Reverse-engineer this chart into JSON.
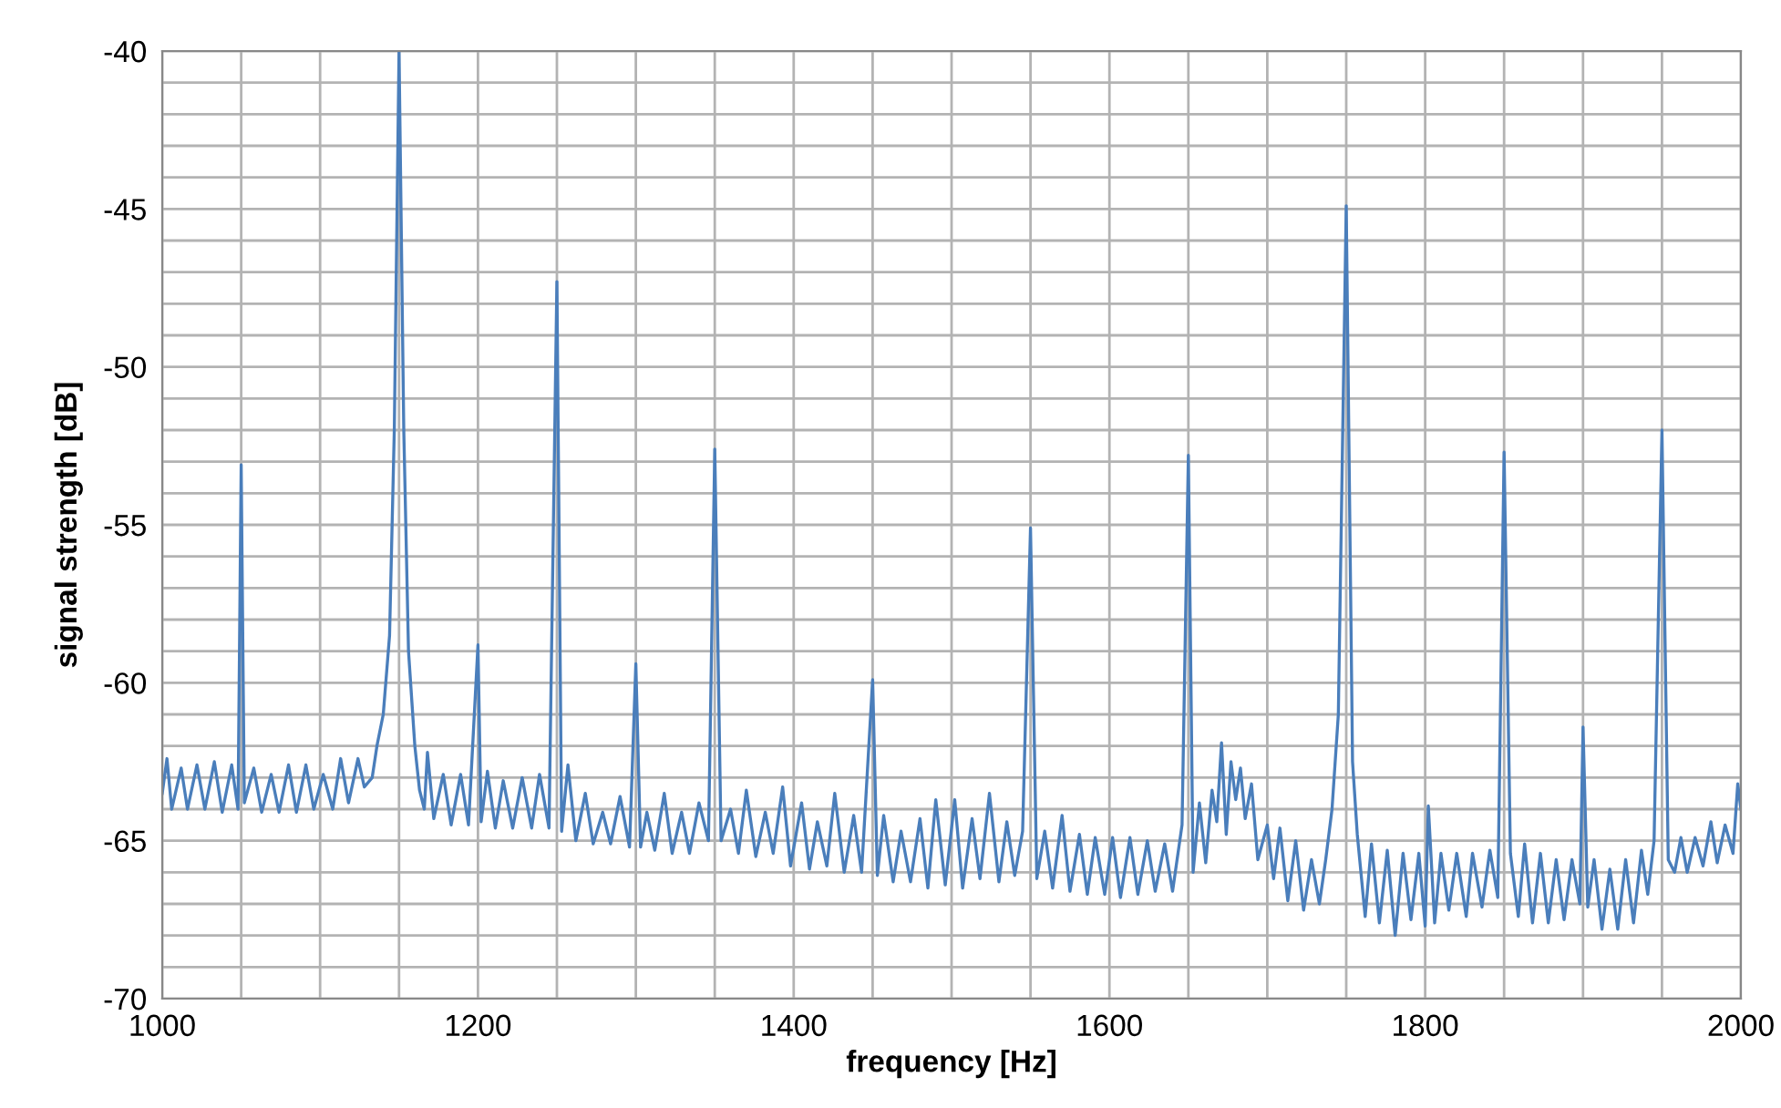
{
  "chart_data": {
    "type": "line",
    "xlabel": "frequency [Hz]",
    "ylabel": "signal strength [dB]",
    "xlim": [
      1000,
      2000
    ],
    "ylim": [
      -70,
      -40
    ],
    "xticks": [
      1000,
      {
        "value": 1050,
        "label": null
      },
      {
        "value": 1100,
        "label": null
      },
      {
        "value": 1150,
        "label": null
      },
      1200,
      {
        "value": 1250,
        "label": null
      },
      {
        "value": 1300,
        "label": null
      },
      {
        "value": 1350,
        "label": null
      },
      1400,
      {
        "value": 1450,
        "label": null
      },
      {
        "value": 1500,
        "label": null
      },
      {
        "value": 1550,
        "label": null
      },
      1600,
      {
        "value": 1650,
        "label": null
      },
      {
        "value": 1700,
        "label": null
      },
      {
        "value": 1750,
        "label": null
      },
      1800,
      {
        "value": 1850,
        "label": null
      },
      {
        "value": 1900,
        "label": null
      },
      {
        "value": 1950,
        "label": null
      },
      2000
    ],
    "yticks": [
      -70,
      {
        "value": -69,
        "label": null
      },
      {
        "value": -68,
        "label": null
      },
      {
        "value": -67,
        "label": null
      },
      {
        "value": -66,
        "label": null
      },
      -65,
      {
        "value": -64,
        "label": null
      },
      {
        "value": -63,
        "label": null
      },
      {
        "value": -62,
        "label": null
      },
      {
        "value": -61,
        "label": null
      },
      -60,
      {
        "value": -59,
        "label": null
      },
      {
        "value": -58,
        "label": null
      },
      {
        "value": -57,
        "label": null
      },
      {
        "value": -56,
        "label": null
      },
      -55,
      {
        "value": -54,
        "label": null
      },
      {
        "value": -53,
        "label": null
      },
      {
        "value": -52,
        "label": null
      },
      {
        "value": -51,
        "label": null
      },
      -50,
      {
        "value": -49,
        "label": null
      },
      {
        "value": -48,
        "label": null
      },
      {
        "value": -47,
        "label": null
      },
      {
        "value": -46,
        "label": null
      },
      -45,
      {
        "value": -44,
        "label": null
      },
      {
        "value": -43,
        "label": null
      },
      {
        "value": -42,
        "label": null
      },
      {
        "value": -41,
        "label": null
      },
      -40
    ],
    "grid": true,
    "legend": false,
    "marker": "none",
    "line_style": "solid",
    "series": [
      {
        "color": "#4a7ebb",
        "x": [
          1000,
          1003,
          1006,
          1012,
          1016,
          1022,
          1027,
          1033,
          1038,
          1044,
          1048,
          1050,
          1052,
          1058,
          1063,
          1069,
          1074,
          1080,
          1085,
          1091,
          1096,
          1102,
          1108,
          1113,
          1118,
          1124,
          1128,
          1133,
          1136,
          1140,
          1144,
          1147,
          1150,
          1153,
          1156,
          1160,
          1163,
          1166,
          1168,
          1172,
          1178,
          1183,
          1189,
          1194,
          1200,
          1202,
          1206,
          1211,
          1216,
          1222,
          1228,
          1234,
          1239,
          1245,
          1250,
          1253,
          1257,
          1262,
          1268,
          1273,
          1279,
          1284,
          1290,
          1296,
          1300,
          1303,
          1307,
          1312,
          1318,
          1323,
          1329,
          1334,
          1340,
          1346,
          1350,
          1354,
          1360,
          1365,
          1370,
          1376,
          1382,
          1387,
          1393,
          1398,
          1405,
          1410,
          1415,
          1421,
          1426,
          1432,
          1438,
          1443,
          1450,
          1453,
          1457,
          1463,
          1468,
          1474,
          1480,
          1485,
          1490,
          1496,
          1502,
          1507,
          1513,
          1518,
          1524,
          1530,
          1535,
          1540,
          1545,
          1550,
          1554,
          1559,
          1564,
          1570,
          1575,
          1581,
          1586,
          1591,
          1597,
          1602,
          1607,
          1613,
          1618,
          1624,
          1629,
          1635,
          1640,
          1646,
          1650,
          1653,
          1657,
          1661,
          1665,
          1668,
          1671,
          1674,
          1677,
          1680,
          1683,
          1686,
          1690,
          1694,
          1700,
          1704,
          1708,
          1713,
          1718,
          1723,
          1728,
          1733,
          1737,
          1741,
          1745,
          1750,
          1754,
          1757,
          1762,
          1766,
          1771,
          1776,
          1781,
          1786,
          1791,
          1796,
          1800,
          1802,
          1806,
          1810,
          1815,
          1820,
          1826,
          1830,
          1836,
          1841,
          1846,
          1850,
          1854,
          1859,
          1863,
          1868,
          1873,
          1878,
          1883,
          1888,
          1893,
          1898,
          1900,
          1903,
          1907,
          1912,
          1917,
          1922,
          1927,
          1932,
          1937,
          1941,
          1945,
          1950,
          1954,
          1958,
          1962,
          1966,
          1971,
          1976,
          1981,
          1985,
          1990,
          1995,
          1998,
          2000
        ],
        "values": [
          -63.5,
          -62.4,
          -64.0,
          -62.7,
          -64.0,
          -62.6,
          -64.0,
          -62.5,
          -64.1,
          -62.6,
          -64.0,
          -53.1,
          -63.8,
          -62.7,
          -64.1,
          -62.9,
          -64.1,
          -62.6,
          -64.1,
          -62.6,
          -64.0,
          -62.9,
          -64.0,
          -62.4,
          -63.8,
          -62.4,
          -63.3,
          -63.0,
          -62.0,
          -61.0,
          -58.5,
          -52,
          -40,
          -52,
          -59,
          -62,
          -63.4,
          -64.0,
          -62.2,
          -64.3,
          -62.9,
          -64.5,
          -62.9,
          -64.5,
          -58.8,
          -64.4,
          -62.8,
          -64.6,
          -63.1,
          -64.6,
          -63.0,
          -64.6,
          -62.9,
          -64.6,
          -47.3,
          -64.7,
          -62.6,
          -65.0,
          -63.5,
          -65.1,
          -64.1,
          -65.1,
          -63.6,
          -65.2,
          -59.4,
          -65.2,
          -64.1,
          -65.3,
          -63.5,
          -65.4,
          -64.1,
          -65.4,
          -63.8,
          -65.0,
          -52.6,
          -65.0,
          -64.0,
          -65.4,
          -63.4,
          -65.5,
          -64.1,
          -65.4,
          -63.3,
          -65.8,
          -63.8,
          -65.9,
          -64.4,
          -65.8,
          -63.5,
          -66.0,
          -64.2,
          -66.0,
          -59.9,
          -66.1,
          -64.2,
          -66.3,
          -64.7,
          -66.3,
          -64.3,
          -66.5,
          -63.7,
          -66.4,
          -63.7,
          -66.5,
          -64.3,
          -66.2,
          -63.5,
          -66.3,
          -64.4,
          -66.1,
          -64.7,
          -55.1,
          -66.2,
          -64.7,
          -66.5,
          -64.2,
          -66.6,
          -64.8,
          -66.7,
          -64.9,
          -66.7,
          -64.9,
          -66.8,
          -64.9,
          -66.7,
          -65.0,
          -66.6,
          -65.1,
          -66.6,
          -64.5,
          -52.8,
          -66.0,
          -63.8,
          -65.7,
          -63.4,
          -64.4,
          -61.9,
          -64.8,
          -62.5,
          -63.7,
          -62.7,
          -64.3,
          -63.2,
          -65.6,
          -64.5,
          -66.2,
          -64.6,
          -66.9,
          -65.0,
          -67.2,
          -65.6,
          -67.0,
          -65.6,
          -64.0,
          -61,
          -44.9,
          -62.5,
          -64.8,
          -67.4,
          -65.1,
          -67.6,
          -65.3,
          -68.0,
          -65.4,
          -67.5,
          -65.4,
          -67.7,
          -63.9,
          -67.6,
          -65.4,
          -67.2,
          -65.4,
          -67.4,
          -65.4,
          -67.1,
          -65.3,
          -66.8,
          -52.7,
          -65.4,
          -67.4,
          -65.1,
          -67.6,
          -65.4,
          -67.6,
          -65.6,
          -67.5,
          -65.6,
          -67.0,
          -61.4,
          -67.1,
          -65.6,
          -67.8,
          -65.9,
          -67.8,
          -65.6,
          -67.6,
          -65.3,
          -66.7,
          -65.0,
          -52.0,
          -65.6,
          -66.0,
          -64.9,
          -66.0,
          -64.9,
          -65.8,
          -64.4,
          -65.7,
          -64.5,
          -65.4,
          -63.2,
          -64.0
        ]
      }
    ]
  }
}
